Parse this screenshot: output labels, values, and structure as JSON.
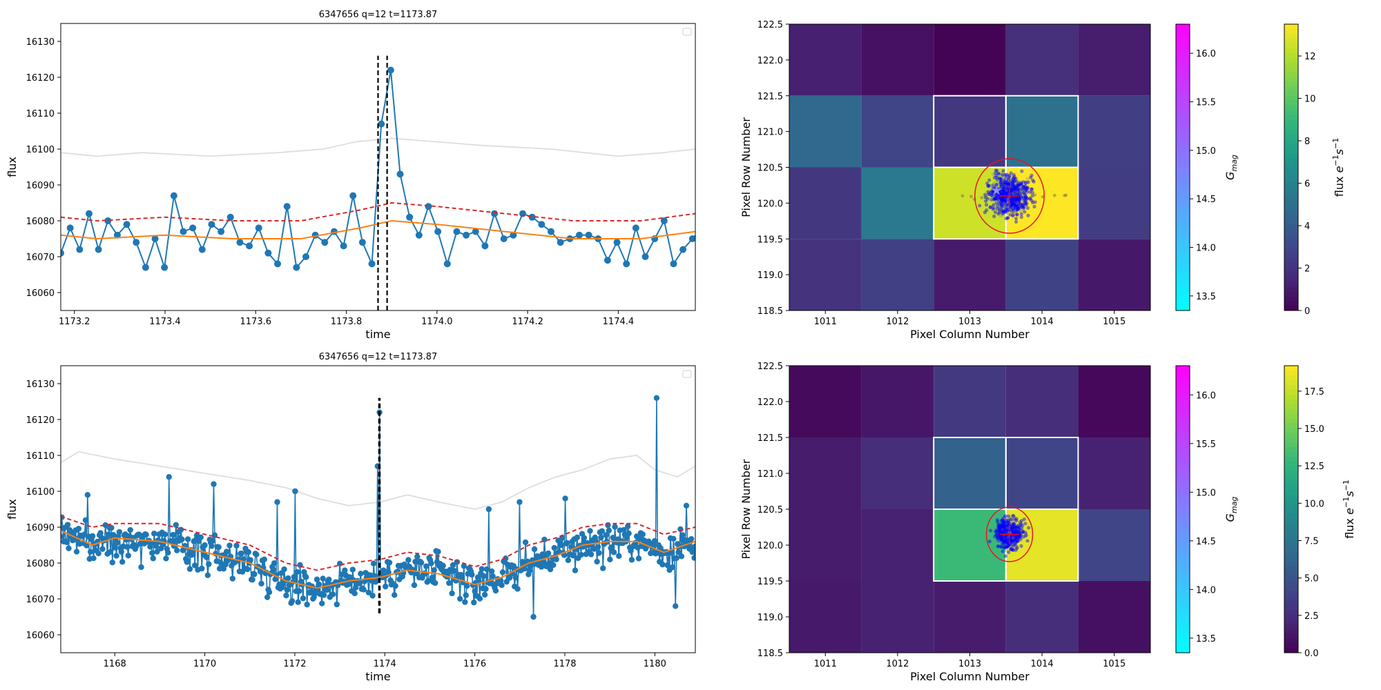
{
  "figure": {
    "top_title": "6347656 q=12 t=1173.87",
    "bottom_title": "6347656 q=12 t=1173.87"
  },
  "chart_data": [
    {
      "id": "lc_top",
      "type": "line",
      "title": "6347656 q=12 t=1173.87",
      "xlabel": "time",
      "ylabel": "flux",
      "xlim": [
        1173.17,
        1174.57
      ],
      "ylim": [
        16055,
        16135
      ],
      "xticks": [
        1173.2,
        1173.4,
        1173.6,
        1173.8,
        1174.0,
        1174.2,
        1174.4
      ],
      "xtick_labels": [
        "1173.2",
        "1173.4",
        "1173.6",
        "1173.8",
        "1174.0",
        "1174.2",
        "1174.4"
      ],
      "yticks": [
        16060,
        16070,
        16080,
        16090,
        16100,
        16110,
        16120,
        16130
      ],
      "legend": "top-right (empty)",
      "vlines": [
        1173.87,
        1173.89
      ],
      "vline_range": [
        16055,
        16126
      ],
      "series": [
        {
          "role": "flux",
          "color": "#1f77b4",
          "x0": 1173.17,
          "dx": 0.0208,
          "y": [
            16071,
            16078,
            16072,
            16082,
            16072,
            16080,
            16076,
            16079,
            16074,
            16067,
            16075,
            16067,
            16087,
            16077,
            16078,
            16072,
            16079,
            16077,
            16081,
            16074,
            16073,
            16078,
            16071,
            16068,
            16084,
            16067,
            16070,
            16076,
            16074,
            16077,
            16073,
            16087,
            16074,
            16068,
            16107,
            16122,
            16093,
            16081,
            16076,
            16084,
            16077,
            16068,
            16077,
            16076,
            16077,
            16073,
            16082,
            16075,
            16076,
            16082,
            16081,
            16079,
            16077,
            16074,
            16075,
            16076,
            16076,
            16075,
            16069,
            16074,
            16068,
            16078,
            16070,
            16075,
            16080,
            16068,
            16072,
            16075,
            16078,
            16081
          ]
        },
        {
          "role": "trend",
          "color": "#ff7f0e",
          "x": [
            1173.17,
            1173.25,
            1173.4,
            1173.55,
            1173.7,
            1173.83,
            1173.9,
            1174.0,
            1174.15,
            1174.3,
            1174.45,
            1174.57
          ],
          "y": [
            16076,
            16075,
            16076,
            16075,
            16075,
            16078,
            16080,
            16079,
            16077,
            16075,
            16075,
            16077
          ]
        },
        {
          "role": "threshold",
          "color": "#d62728",
          "x": [
            1173.17,
            1173.25,
            1173.4,
            1173.55,
            1173.7,
            1173.83,
            1173.9,
            1174.0,
            1174.15,
            1174.3,
            1174.45,
            1174.57
          ],
          "y": [
            16081,
            16080,
            16081,
            16080,
            16080,
            16083,
            16085,
            16084,
            16082,
            16080,
            16080,
            16082
          ]
        },
        {
          "role": "background",
          "color": "#dddddd",
          "x": [
            1173.17,
            1173.25,
            1173.35,
            1173.5,
            1173.65,
            1173.75,
            1173.82,
            1173.9,
            1174.0,
            1174.1,
            1174.25,
            1174.4,
            1174.5,
            1174.57
          ],
          "y": [
            16099,
            16098,
            16099,
            16098,
            16099,
            16100,
            16102,
            16103,
            16102,
            16101,
            16100,
            16098,
            16099,
            16100
          ]
        }
      ]
    },
    {
      "id": "lc_bottom",
      "type": "line",
      "title": "6347656 q=12 t=1173.87",
      "xlabel": "time",
      "ylabel": "flux",
      "xlim": [
        1166.8,
        1180.9
      ],
      "ylim": [
        16055,
        16135
      ],
      "xticks": [
        1168,
        1170,
        1172,
        1174,
        1176,
        1178,
        1180
      ],
      "xtick_labels": [
        "1168",
        "1170",
        "1172",
        "1174",
        "1176",
        "1178",
        "1180"
      ],
      "yticks": [
        16060,
        16070,
        16080,
        16090,
        16100,
        16110,
        16120,
        16130
      ],
      "legend": "top-right (empty)",
      "vlines": [
        1173.87,
        1173.89
      ],
      "vline_range": [
        16066,
        16126
      ],
      "series": [
        {
          "role": "flux",
          "color": "#1f77b4",
          "trend_x": [
            1166.8,
            1167.5,
            1168.0,
            1169.0,
            1170.0,
            1171.0,
            1171.8,
            1172.5,
            1173.2,
            1173.9,
            1174.5,
            1175.2,
            1176.0,
            1176.6,
            1177.2,
            1177.8,
            1178.4,
            1179.0,
            1179.6,
            1180.2,
            1180.9
          ],
          "trend_y": [
            16089,
            16085,
            16087,
            16086,
            16083,
            16080,
            16075,
            16073,
            16075,
            16076,
            16078,
            16077,
            16074,
            16076,
            16080,
            16082,
            16085,
            16086,
            16086,
            16083,
            16086
          ],
          "spikes": [
            [
              1167.4,
              16099
            ],
            [
              1169.2,
              16104
            ],
            [
              1170.2,
              16102
            ],
            [
              1171.6,
              16097
            ],
            [
              1172.0,
              16100
            ],
            [
              1173.85,
              16107
            ],
            [
              1173.88,
              16122
            ],
            [
              1176.3,
              16095
            ],
            [
              1177.0,
              16097
            ],
            [
              1177.3,
              16065
            ],
            [
              1178.0,
              16098
            ],
            [
              1180.05,
              16126
            ],
            [
              1180.7,
              16096
            ],
            [
              1180.45,
              16068
            ]
          ]
        },
        {
          "role": "trend",
          "color": "#ff7f0e",
          "x": [
            1166.8,
            1167.5,
            1168.0,
            1169.0,
            1170.0,
            1171.0,
            1171.8,
            1172.5,
            1173.2,
            1173.9,
            1174.5,
            1175.2,
            1176.0,
            1176.6,
            1177.2,
            1177.8,
            1178.4,
            1179.0,
            1179.6,
            1180.2,
            1180.9
          ],
          "y": [
            16089,
            16085,
            16087,
            16086,
            16083,
            16080,
            16075,
            16073,
            16075,
            16076,
            16078,
            16077,
            16074,
            16076,
            16080,
            16082,
            16085,
            16086,
            16086,
            16083,
            16086
          ]
        },
        {
          "role": "threshold",
          "color": "#d62728",
          "x": [
            1166.8,
            1167.5,
            1168.0,
            1169.0,
            1170.0,
            1171.0,
            1171.8,
            1172.5,
            1173.2,
            1173.9,
            1174.5,
            1175.2,
            1176.0,
            1176.6,
            1177.2,
            1177.8,
            1178.4,
            1179.0,
            1179.6,
            1180.2,
            1180.9
          ],
          "y": [
            16093,
            16090,
            16091,
            16091,
            16088,
            16085,
            16080,
            16078,
            16080,
            16081,
            16083,
            16082,
            16079,
            16081,
            16085,
            16087,
            16090,
            16091,
            16091,
            16088,
            16090
          ]
        },
        {
          "role": "background",
          "color": "#dddddd",
          "x": [
            1166.8,
            1167.2,
            1168.0,
            1169.0,
            1170.0,
            1171.0,
            1171.8,
            1172.5,
            1173.2,
            1173.9,
            1174.5,
            1175.2,
            1176.0,
            1176.6,
            1177.2,
            1177.8,
            1178.4,
            1179.0,
            1179.6,
            1180.0,
            1180.5,
            1180.9
          ],
          "y": [
            16108,
            16111,
            16109,
            16107,
            16105,
            16103,
            16101,
            16098,
            16096,
            16097,
            16099,
            16097,
            16095,
            16097,
            16101,
            16104,
            16106,
            16109,
            16110,
            16106,
            16104,
            16107
          ]
        }
      ]
    },
    {
      "id": "tpf_top",
      "type": "heatmap",
      "xlabel": "Pixel Column Number",
      "ylabel": "Pixel Row Number",
      "xlim": [
        1010.5,
        1015.5
      ],
      "ylim": [
        118.5,
        122.5
      ],
      "xticks": [
        1011,
        1012,
        1013,
        1014,
        1015
      ],
      "yticks": [
        "118.5",
        "119.0",
        "119.5",
        "120.0",
        "120.5",
        "121.0",
        "121.5",
        "122.0",
        "122.5"
      ],
      "columns": [
        1011,
        1012,
        1013,
        1014,
        1015
      ],
      "rows_top_to_bottom": [
        122,
        121,
        120,
        119
      ],
      "values": [
        [
          1.2,
          0.6,
          0.1,
          1.8,
          1.1
        ],
        [
          4.5,
          2.8,
          2.2,
          5.0,
          2.5
        ],
        [
          2.2,
          5.5,
          12.5,
          13.5,
          2.4
        ],
        [
          2.0,
          2.6,
          1.0,
          2.7,
          0.9
        ]
      ],
      "aperture": [
        [
          121,
          1013
        ],
        [
          121,
          1014
        ],
        [
          120,
          1013
        ],
        [
          120,
          1014
        ]
      ],
      "target": {
        "col": 1013.55,
        "row": 120.1
      },
      "gaia_star": {
        "col": 1013.37,
        "row": 120.18
      },
      "ellipse": {
        "rx": 0.48,
        "ry": 0.52
      },
      "colorbar_gmag": {
        "label": "G_mag",
        "ticks": [
          "13.5",
          "14.0",
          "14.5",
          "15.0",
          "15.5",
          "16.0"
        ],
        "min": 13.35,
        "max": 16.3
      },
      "colorbar_flux": {
        "label": "flux e⁻¹s⁻¹",
        "ticks": [
          "0",
          "2",
          "4",
          "6",
          "8",
          "10",
          "12"
        ],
        "min": 0,
        "max": 13.5
      }
    },
    {
      "id": "tpf_bottom",
      "type": "heatmap",
      "xlabel": "Pixel Column Number",
      "ylabel": "Pixel Row Number",
      "xlim": [
        1010.5,
        1015.5
      ],
      "ylim": [
        118.5,
        122.5
      ],
      "xticks": [
        1011,
        1012,
        1013,
        1014,
        1015
      ],
      "yticks": [
        "118.5",
        "119.0",
        "119.5",
        "120.0",
        "120.5",
        "121.0",
        "121.5",
        "122.0",
        "122.5"
      ],
      "columns": [
        1011,
        1012,
        1013,
        1014,
        1015
      ],
      "rows_top_to_bottom": [
        122,
        121,
        120,
        119
      ],
      "values": [
        [
          0.5,
          1.2,
          3.2,
          2.5,
          0.4
        ],
        [
          1.5,
          2.5,
          6.0,
          4.0,
          1.8
        ],
        [
          1.5,
          1.8,
          13.0,
          18.5,
          4.0
        ],
        [
          1.3,
          1.8,
          1.5,
          2.5,
          0.8
        ]
      ],
      "aperture": [
        [
          121,
          1013
        ],
        [
          121,
          1014
        ],
        [
          120,
          1013
        ],
        [
          120,
          1014
        ]
      ],
      "target": {
        "col": 1013.55,
        "row": 120.15
      },
      "gaia_star": null,
      "ellipse": {
        "rx": 0.32,
        "ry": 0.38
      },
      "colorbar_gmag": {
        "label": "G_mag",
        "ticks": [
          "13.5",
          "14.0",
          "14.5",
          "15.0",
          "15.5",
          "16.0"
        ],
        "min": 13.35,
        "max": 16.3
      },
      "colorbar_flux": {
        "label": "flux e⁻¹s⁻¹",
        "ticks": [
          "0.0",
          "2.5",
          "5.0",
          "7.5",
          "10.0",
          "12.5",
          "15.0",
          "17.5"
        ],
        "min": 0,
        "max": 19.2
      }
    }
  ]
}
